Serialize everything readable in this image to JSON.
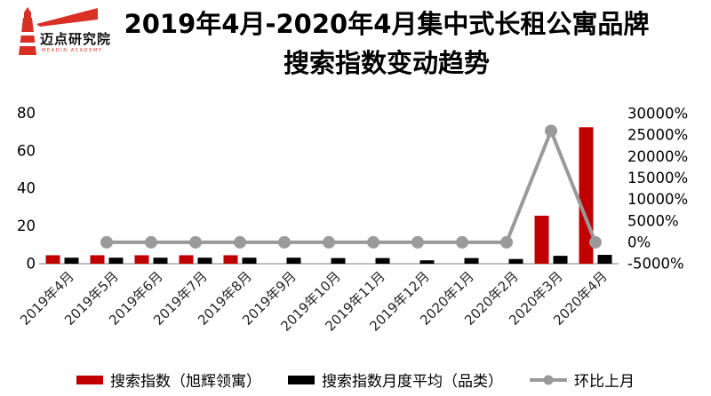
{
  "logo": {
    "name": "迈点研究院",
    "caption": "MEADIN ACADEMY"
  },
  "title": {
    "line1": "2019年4月-2020年4月集中式长租公寓品牌",
    "line2": "搜索指数变动趋势"
  },
  "colors": {
    "brand_red": "#d93025",
    "bar_red": "#c00000",
    "bar_black": "#000000",
    "line_gray": "#9a9a9a",
    "axis_line_gray": "#bfbfbf"
  },
  "chart_data": {
    "type": "bar+line combo",
    "title": "2019年4月-2020年4月集中式长租公寓品牌搜索指数变动趋势",
    "categories": [
      "2019年4月",
      "2019年5月",
      "2019年6月",
      "2019年7月",
      "2019年8月",
      "2019年9月",
      "2019年10月",
      "2019年11月",
      "2019年12月",
      "2020年1月",
      "2020年2月",
      "2020年3月",
      "2020年4月"
    ],
    "series": [
      {
        "name": "搜索指数（旭辉领寓）",
        "type": "bar",
        "axis": "left",
        "color": "#c00000",
        "values": [
          4.5,
          4.5,
          4.5,
          4.5,
          4.5,
          0,
          0,
          0,
          0,
          0,
          0,
          25.5,
          72.5
        ]
      },
      {
        "name": "搜索指数月度平均（品类）",
        "type": "bar",
        "axis": "left",
        "color": "#000000",
        "values": [
          3.2,
          3.2,
          3.2,
          3.2,
          3.2,
          3.2,
          3,
          3,
          1.8,
          3,
          2.5,
          4.2,
          4.7
        ]
      },
      {
        "name": "环比上月",
        "type": "line",
        "axis": "right",
        "color": "#9a9a9a",
        "values": [
          null,
          0,
          0,
          0,
          0,
          0,
          0,
          0,
          0,
          0,
          0,
          26000,
          0
        ]
      }
    ],
    "left_axis": {
      "tick_values": [
        0,
        20,
        40,
        60,
        80
      ],
      "tick_labels": [
        "0",
        "20",
        "40",
        "60",
        "80"
      ],
      "range": [
        0,
        80
      ]
    },
    "right_axis": {
      "tick_values": [
        -5000,
        0,
        5000,
        10000,
        15000,
        20000,
        25000,
        30000
      ],
      "tick_labels": [
        "-5000%",
        "0%",
        "5000%",
        "10000%",
        "15000%",
        "20000%",
        "25000%",
        "30000%"
      ],
      "range": [
        -5000,
        30000
      ]
    },
    "grid": false,
    "legend_position": "bottom"
  }
}
